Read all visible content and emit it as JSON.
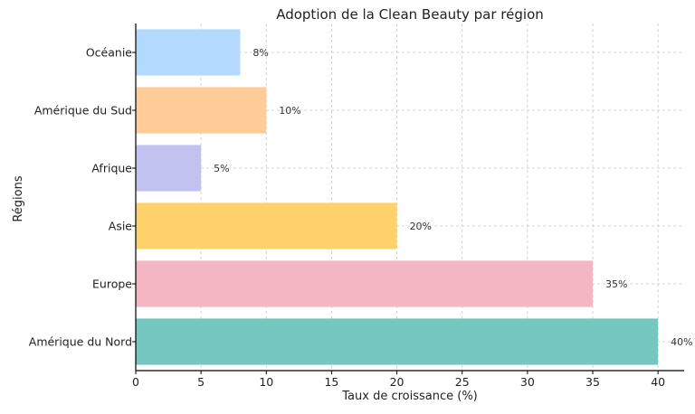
{
  "chart_data": {
    "type": "bar",
    "orientation": "horizontal",
    "title": "Adoption de la Clean Beauty par région",
    "xlabel": "Taux de croissance (%)",
    "ylabel": "Régions",
    "categories": [
      "Amérique du Nord",
      "Europe",
      "Asie",
      "Afrique",
      "Amérique du Sud",
      "Océanie"
    ],
    "values": [
      40,
      35,
      20,
      5,
      10,
      8
    ],
    "value_labels": [
      "40%",
      "35%",
      "20%",
      "5%",
      "10%",
      "8%"
    ],
    "colors": [
      "#76c7bf",
      "#f4b6c2",
      "#ffd16b",
      "#c2c2f0",
      "#ffcc99",
      "#b3d9ff"
    ],
    "xlim": [
      0,
      42
    ],
    "xticks": [
      0,
      5,
      10,
      15,
      20,
      25,
      30,
      35,
      40
    ],
    "grid": true
  }
}
